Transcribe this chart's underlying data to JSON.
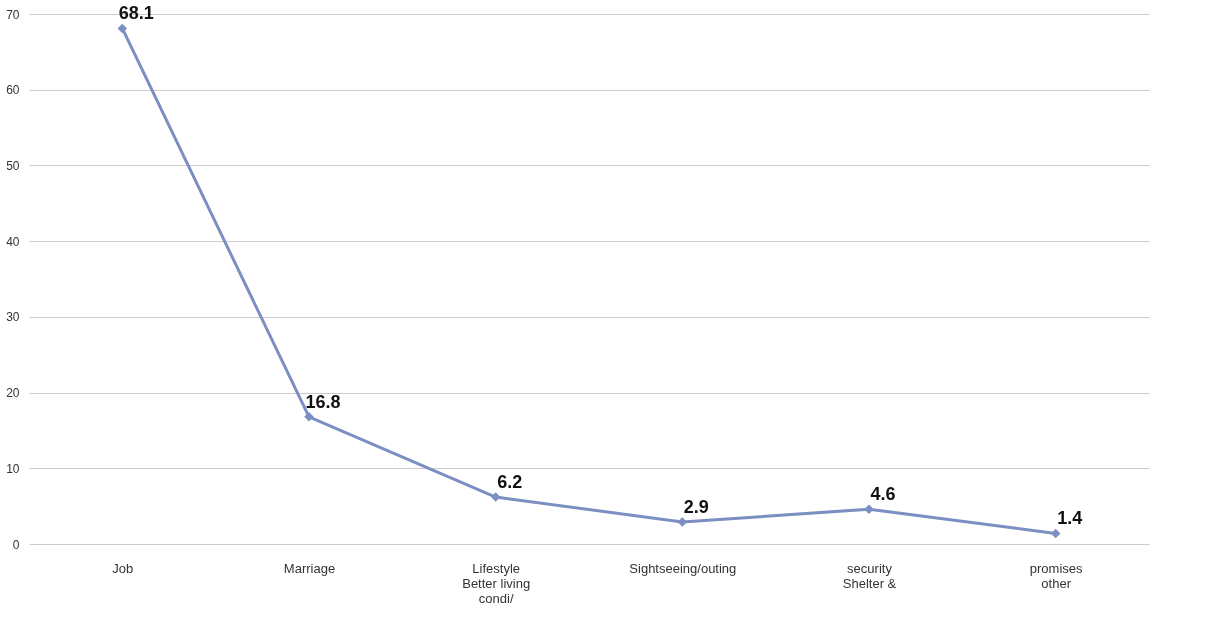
{
  "chart_data": {
    "type": "line",
    "categories": [
      "Job",
      "Marriage",
      "Lifestyle\nBetter living\ncondi/",
      "Sightseeing/outing",
      "security\nShelter &",
      "promises\nother"
    ],
    "series": [
      {
        "color": "#7b8fc2",
        "values": [
          68.1,
          16.8,
          6.2,
          2.9,
          4.6,
          1.4
        ]
      }
    ],
    "ylim": [
      0,
      70
    ],
    "yticks": [
      0,
      10,
      20,
      30,
      40,
      50,
      60,
      70
    ],
    "grid": "y",
    "data_labels": true,
    "marker": "diamond",
    "line_style": "solid",
    "legend": false
  }
}
